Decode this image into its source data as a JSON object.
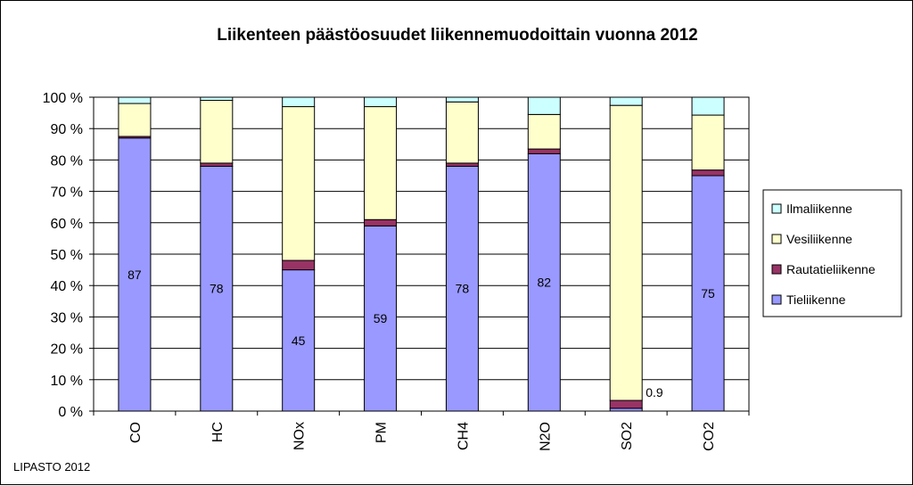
{
  "chart_data": {
    "type": "bar",
    "stacked": true,
    "title": "Liikenteen päästöosuudet liikennemuodoittain vuonna 2012",
    "categories": [
      "CO",
      "HC",
      "NOx",
      "PM",
      "CH4",
      "N2O",
      "SO2",
      "CO2"
    ],
    "ylim": [
      0,
      100
    ],
    "yticks": [
      "0 %",
      "10 %",
      "20 %",
      "30 %",
      "40 %",
      "50 %",
      "60 %",
      "70 %",
      "80 %",
      "90 %",
      "100 %"
    ],
    "grid": true,
    "legend_position": "right",
    "series": [
      {
        "name": "Tieliikenne",
        "color": "#9999ff",
        "values": [
          87,
          78,
          45,
          59,
          78,
          82,
          0.9,
          75
        ]
      },
      {
        "name": "Rautatieliikenne",
        "color": "#993366",
        "values": [
          0.5,
          1,
          3,
          2,
          1,
          1.5,
          2.5,
          1.8
        ]
      },
      {
        "name": "Vesiliikenne",
        "color": "#ffffcc",
        "values": [
          10.5,
          20,
          49,
          36,
          19.5,
          11,
          94,
          17.5
        ]
      },
      {
        "name": "Ilmaliikenne",
        "color": "#ccffff",
        "values": [
          2,
          1,
          3,
          3,
          1.5,
          5.5,
          2.6,
          5.7
        ]
      }
    ],
    "data_labels": [
      "87",
      "78",
      "45",
      "59",
      "78",
      "82",
      "0.9",
      "75"
    ],
    "legend_order": [
      "Ilmaliikenne",
      "Vesiliikenne",
      "Rautatieliikenne",
      "Tieliikenne"
    ],
    "credit": "LIPASTO 2012"
  }
}
